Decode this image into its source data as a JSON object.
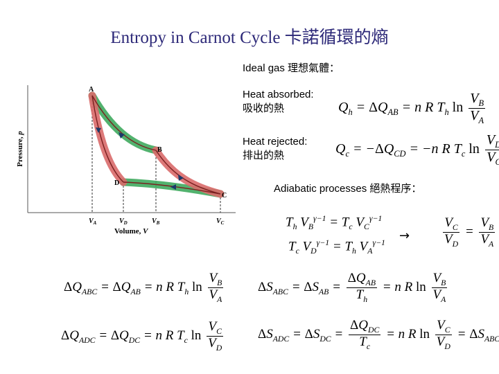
{
  "title": "Entropy in Carnot Cycle  卡諾循環的熵",
  "ideal_gas_label": "Ideal gas  理想氣體：",
  "heat_absorbed_label": "Heat absorbed:",
  "heat_absorbed_cn": "吸收的熱",
  "heat_rejected_label": "Heat rejected:",
  "heat_rejected_cn": "排出的熱",
  "adiabatic_label": "Adiabatic processes  絕熱程序：",
  "arrow": "→",
  "diagram": {
    "ylabel": "Pressure, p",
    "xlabel": "Volume, V",
    "points": [
      "A",
      "B",
      "C",
      "D"
    ],
    "ticks": [
      "V_A",
      "V_D",
      "V_B",
      "V_C"
    ],
    "colors": {
      "isotherm": "#3faa5e",
      "adiabat": "#d96a6a",
      "curve": "#7a2020",
      "title": "#2c2878"
    }
  }
}
